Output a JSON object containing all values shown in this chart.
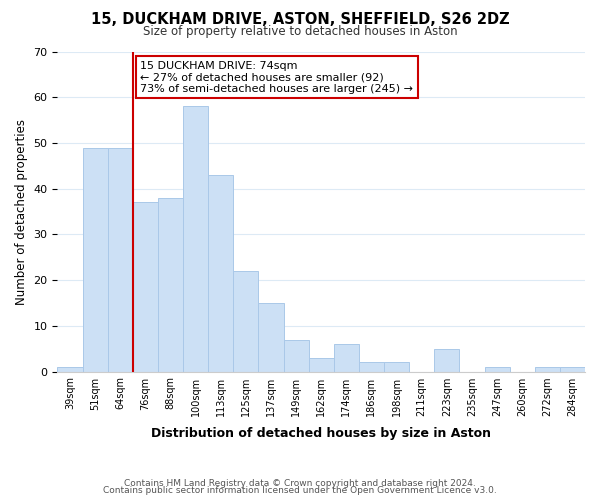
{
  "title": "15, DUCKHAM DRIVE, ASTON, SHEFFIELD, S26 2DZ",
  "subtitle": "Size of property relative to detached houses in Aston",
  "xlabel": "Distribution of detached houses by size in Aston",
  "ylabel": "Number of detached properties",
  "bin_labels": [
    "39sqm",
    "51sqm",
    "64sqm",
    "76sqm",
    "88sqm",
    "100sqm",
    "113sqm",
    "125sqm",
    "137sqm",
    "149sqm",
    "162sqm",
    "174sqm",
    "186sqm",
    "198sqm",
    "211sqm",
    "223sqm",
    "235sqm",
    "247sqm",
    "260sqm",
    "272sqm",
    "284sqm"
  ],
  "bar_heights": [
    1,
    49,
    49,
    37,
    38,
    58,
    43,
    22,
    15,
    7,
    3,
    6,
    2,
    2,
    0,
    5,
    0,
    1,
    0,
    1,
    1
  ],
  "bar_color": "#cce0f5",
  "bar_edgecolor": "#aac8e8",
  "grid_color": "#ddeaf5",
  "vline_color": "#cc0000",
  "annotation_text": "15 DUCKHAM DRIVE: 74sqm\n← 27% of detached houses are smaller (92)\n73% of semi-detached houses are larger (245) →",
  "annotation_box_edgecolor": "#cc0000",
  "ylim": [
    0,
    70
  ],
  "yticks": [
    0,
    10,
    20,
    30,
    40,
    50,
    60,
    70
  ],
  "footer1": "Contains HM Land Registry data © Crown copyright and database right 2024.",
  "footer2": "Contains public sector information licensed under the Open Government Licence v3.0."
}
